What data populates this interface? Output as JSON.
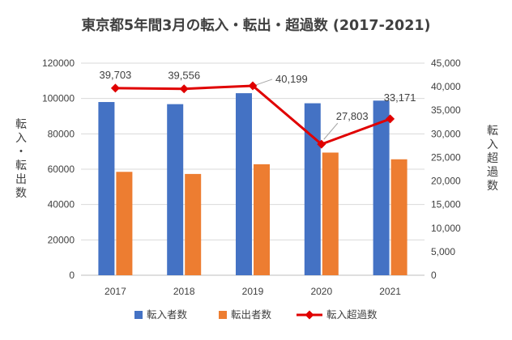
{
  "chart_data": {
    "type": "bar",
    "title": "東京都5年間3月の転入・転出・超過数 (2017-2021)",
    "categories": [
      "2017",
      "2018",
      "2019",
      "2020",
      "2021"
    ],
    "ylabel_left": "転入・転出数",
    "ylabel_right": "転入超過数",
    "ylim_left": [
      0,
      120000
    ],
    "ylim_right": [
      0,
      45000
    ],
    "yticks_left": [
      "0",
      "20000",
      "40000",
      "60000",
      "80000",
      "100000",
      "120000"
    ],
    "yticks_right": [
      "0",
      "5,000",
      "10,000",
      "15,000",
      "20,000",
      "25,000",
      "30,000",
      "35,000",
      "40,000",
      "45,000"
    ],
    "grid": true,
    "legend_position": "bottom",
    "series": [
      {
        "name": "転入者数",
        "type": "bar",
        "axis": "left",
        "color": "#4472C4",
        "values": [
          98000,
          96800,
          103000,
          97300,
          98800
        ]
      },
      {
        "name": "転出者数",
        "type": "bar",
        "axis": "left",
        "color": "#ED7D31",
        "values": [
          58500,
          57300,
          62800,
          69400,
          65600
        ]
      },
      {
        "name": "転入超過数",
        "type": "line",
        "axis": "right",
        "color": "#E00000",
        "values": [
          39703,
          39556,
          40199,
          27803,
          33171
        ],
        "data_labels": [
          "39,703",
          "39,556",
          "40,199",
          "27,803",
          "33,171"
        ]
      }
    ]
  }
}
